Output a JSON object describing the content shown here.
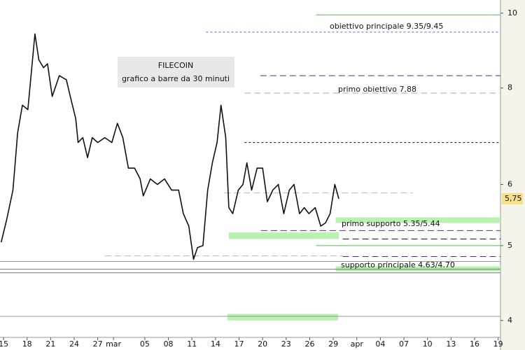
{
  "chart_data": {
    "type": "line",
    "log_scale": true,
    "title": "FILECOIN",
    "subtitle": "grafico a barre da 30 minuti",
    "xlim": [
      -0.45,
      63.3
    ],
    "xticks": [
      {
        "value": 0,
        "label": "15"
      },
      {
        "value": 3,
        "label": "18"
      },
      {
        "value": 6,
        "label": "21"
      },
      {
        "value": 9,
        "label": "24"
      },
      {
        "value": 12,
        "label": "27"
      },
      {
        "value": 14,
        "label": "mar"
      },
      {
        "value": 18,
        "label": "05"
      },
      {
        "value": 21,
        "label": "08"
      },
      {
        "value": 24,
        "label": "11"
      },
      {
        "value": 27,
        "label": "14"
      },
      {
        "value": 30,
        "label": "17"
      },
      {
        "value": 33,
        "label": "20"
      },
      {
        "value": 36,
        "label": "23"
      },
      {
        "value": 39,
        "label": "26"
      },
      {
        "value": 42,
        "label": "29"
      },
      {
        "value": 45,
        "label": "apr"
      },
      {
        "value": 48,
        "label": "04"
      },
      {
        "value": 51,
        "label": "07"
      },
      {
        "value": 54,
        "label": "10"
      },
      {
        "value": 57,
        "label": "13"
      },
      {
        "value": 60,
        "label": "16"
      },
      {
        "value": 63,
        "label": "19"
      }
    ],
    "ylim": [
      3.74,
      10.4
    ],
    "yticks": [
      4,
      5,
      6,
      8,
      10
    ],
    "series": [
      {
        "name": "FILECOIN",
        "color": "#111111",
        "x": [
          -0.3,
          0.4,
          1.2,
          1.8,
          2.4,
          3.1,
          3.6,
          4.0,
          4.5,
          5.1,
          5.6,
          6.2,
          7.1,
          8.0,
          8.5,
          9.2,
          9.5,
          10.1,
          10.7,
          11.3,
          12.0,
          12.9,
          13.8,
          14.5,
          15.2,
          15.9,
          16.7,
          17.4,
          17.8,
          18.7,
          19.6,
          20.5,
          21.4,
          22.3,
          22.9,
          23.6,
          24.2,
          24.7,
          25.4,
          26.0,
          26.6,
          27.2,
          27.7,
          28.3,
          28.7,
          29.2,
          29.9,
          30.5,
          31.0,
          31.6,
          32.3,
          33.0,
          33.6,
          34.3,
          35.0,
          35.7,
          36.4,
          37.0,
          37.7,
          38.3,
          38.9,
          39.7,
          40.4,
          41.0,
          41.6,
          42.2,
          42.7
        ],
        "values": [
          5.05,
          5.4,
          5.9,
          7.0,
          7.6,
          7.5,
          8.5,
          9.4,
          8.7,
          8.5,
          8.6,
          7.8,
          8.3,
          8.2,
          7.8,
          7.3,
          6.8,
          6.9,
          6.5,
          6.9,
          6.8,
          6.9,
          6.8,
          7.2,
          6.9,
          6.3,
          6.3,
          6.1,
          5.8,
          6.1,
          6.0,
          6.1,
          5.9,
          5.9,
          5.5,
          5.3,
          4.8,
          4.97,
          5.0,
          5.9,
          6.4,
          6.8,
          7.6,
          6.9,
          5.6,
          5.5,
          5.9,
          6.0,
          6.4,
          5.9,
          6.3,
          6.3,
          5.7,
          5.9,
          6.0,
          5.5,
          5.9,
          6.0,
          5.5,
          5.6,
          5.5,
          5.6,
          5.3,
          5.35,
          5.5,
          6.0,
          5.75
        ]
      }
    ],
    "last_label": "5,75",
    "levels": [
      {
        "value": 9.95,
        "color": "#5cb85c",
        "dash": "solid",
        "xrange": [
          39.8,
          63.3
        ]
      },
      {
        "value": 9.45,
        "color": "#4a6fd0",
        "dash": "dotted",
        "xrange": [
          25.8,
          63.3
        ]
      },
      {
        "value": 8.3,
        "color": "#5a2a82",
        "dash": "dashed",
        "xrange": [
          32.7,
          63.3
        ]
      },
      {
        "value": 7.88,
        "color": "#aaaaaa",
        "dash": "dashed",
        "xrange": [
          30.7,
          63.3
        ]
      },
      {
        "value": 6.8,
        "color": "#111111",
        "dash": "dotted",
        "xrange": [
          30.7,
          63.3
        ]
      },
      {
        "value": 5.85,
        "color": "#bbbbbb",
        "dash": "dashed",
        "xrange": [
          28.1,
          52.1
        ]
      },
      {
        "value": 5.23,
        "color": "#5a2a82",
        "dash": "dashed",
        "xrange": [
          32.8,
          63.3
        ]
      },
      {
        "value": 5.1,
        "color": "#111111",
        "dash": "dashed",
        "xrange": [
          43.2,
          63.3
        ]
      },
      {
        "value": 5.0,
        "color": "#5cb85c",
        "dash": "solid",
        "xrange": [
          39.8,
          63.3
        ]
      },
      {
        "value": 4.84,
        "color": "#5a2a82",
        "dash": "dashed",
        "xrange": [
          43.2,
          63.3
        ]
      },
      {
        "value": 4.85,
        "color": "#bbbbbb",
        "dash": "dashed",
        "xrange": [
          12.9,
          43.2
        ]
      },
      {
        "value": 4.77,
        "color": "#999999",
        "dash": "solid",
        "xrange": [
          -0.45,
          63.3
        ]
      },
      {
        "value": 4.66,
        "color": "#777777",
        "dash": "solid",
        "xrange": [
          -0.45,
          63.3
        ]
      },
      {
        "value": 4.61,
        "color": "#777777",
        "dash": "solid",
        "xrange": [
          -0.45,
          63.3
        ]
      },
      {
        "value": 4.05,
        "color": "#999999",
        "dash": "solid",
        "xrange": [
          -0.45,
          63.3
        ]
      }
    ],
    "bands": [
      {
        "range": [
          5.35,
          5.44
        ],
        "xrange": [
          42.3,
          63.3
        ],
        "color": "#b9f2b0"
      },
      {
        "range": [
          5.1,
          5.2
        ],
        "xrange": [
          28.7,
          42.7
        ],
        "color": "#b9f2b0"
      },
      {
        "range": [
          4.63,
          4.7
        ],
        "xrange": [
          42.3,
          63.3
        ],
        "color": "#b9f2b0"
      },
      {
        "range": [
          4.0,
          4.08
        ],
        "xrange": [
          28.5,
          42.6
        ],
        "color": "#b9f2b0"
      }
    ],
    "annotations": [
      {
        "text": "obiettivo principale 9.35/9.45"
      },
      {
        "text": "primo obiettivo 7.88"
      },
      {
        "text": "primo supporto 5.35/5.44"
      },
      {
        "text": "supporto principale 4.63/4.70"
      }
    ]
  }
}
